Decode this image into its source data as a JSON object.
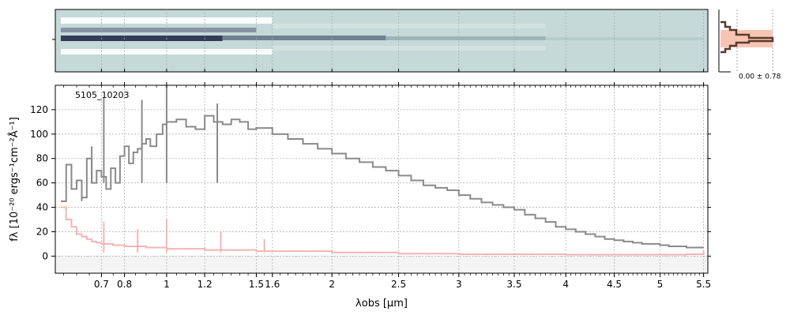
{
  "chart_data": {
    "type": "line",
    "object_label": "5105_10203",
    "xlabel": "λobs [μm]",
    "ylabel": "fλ [10⁻²⁰ ergs⁻¹cm⁻²Å⁻¹]",
    "xlim": [
      0.52,
      5.55
    ],
    "ylim": [
      -14,
      140
    ],
    "x_ticks": [
      0.7,
      0.8,
      1.0,
      1.2,
      1.5,
      1.6,
      2.0,
      2.5,
      3.0,
      3.5,
      4.0,
      4.5,
      5.0,
      5.5
    ],
    "y_ticks": [
      0,
      20,
      40,
      60,
      80,
      100,
      120
    ],
    "x_scale": "square-root",
    "grid": true,
    "profile_annotation": "0.00 ± 0.78",
    "series": [
      {
        "role": "flux",
        "color": "#8a8a8a",
        "x": [
          0.54,
          0.56,
          0.58,
          0.6,
          0.62,
          0.64,
          0.66,
          0.68,
          0.7,
          0.72,
          0.74,
          0.76,
          0.78,
          0.8,
          0.82,
          0.84,
          0.86,
          0.88,
          0.9,
          0.92,
          0.95,
          0.98,
          1.0,
          1.05,
          1.1,
          1.15,
          1.2,
          1.25,
          1.3,
          1.35,
          1.4,
          1.45,
          1.5,
          1.6,
          1.7,
          1.8,
          1.9,
          2.0,
          2.1,
          2.2,
          2.3,
          2.4,
          2.5,
          2.6,
          2.7,
          2.8,
          2.9,
          3.0,
          3.1,
          3.2,
          3.3,
          3.4,
          3.5,
          3.6,
          3.7,
          3.8,
          3.9,
          4.0,
          4.1,
          4.2,
          4.3,
          4.4,
          4.5,
          4.6,
          4.7,
          4.8,
          4.9,
          5.0,
          5.1,
          5.2,
          5.3,
          5.4,
          5.5
        ],
        "y": [
          45,
          75,
          55,
          62,
          48,
          80,
          60,
          70,
          65,
          55,
          72,
          60,
          82,
          90,
          76,
          85,
          88,
          92,
          96,
          90,
          100,
          108,
          110,
          112,
          106,
          104,
          115,
          110,
          108,
          112,
          110,
          104,
          105,
          100,
          96,
          92,
          88,
          84,
          80,
          77,
          73,
          70,
          66,
          62,
          58,
          56,
          54,
          50,
          47,
          44,
          42,
          40,
          38,
          34,
          31,
          28,
          24,
          22,
          20,
          18,
          16,
          14,
          13,
          12,
          11,
          10,
          10,
          9,
          8,
          8,
          7,
          7,
          7
        ]
      },
      {
        "role": "uncertainty",
        "color": "#f5b4b4",
        "x": [
          0.54,
          0.56,
          0.58,
          0.6,
          0.62,
          0.64,
          0.66,
          0.68,
          0.7,
          0.75,
          0.8,
          0.9,
          1.0,
          1.2,
          1.5,
          2.0,
          2.5,
          3.0,
          3.5,
          4.0,
          4.5,
          5.0,
          5.3,
          5.5
        ],
        "y": [
          40,
          30,
          24,
          18,
          16,
          14,
          12,
          11,
          10,
          9,
          8,
          7,
          6,
          5,
          4,
          3,
          2,
          1.5,
          1.5,
          1.2,
          1.2,
          1.2,
          1.5,
          4
        ]
      }
    ],
    "spikes": [
      {
        "x": 0.62,
        "y": 45,
        "color": "#8a8a8a"
      },
      {
        "x": 0.66,
        "y": 90,
        "color": "#8a8a8a"
      },
      {
        "x": 0.71,
        "y": 130,
        "color": "#8a8a8a"
      },
      {
        "x": 0.88,
        "y": 128,
        "color": "#8a8a8a"
      },
      {
        "x": 1.0,
        "y": 140,
        "color": "#8a8a8a"
      },
      {
        "x": 1.27,
        "y": 125,
        "color": "#8a8a8a"
      },
      {
        "x": 0.71,
        "y": 28,
        "color": "#f5b4b4"
      },
      {
        "x": 0.86,
        "y": 22,
        "color": "#f5b4b4"
      },
      {
        "x": 1.0,
        "y": 30,
        "color": "#f5b4b4"
      },
      {
        "x": 1.29,
        "y": 20,
        "color": "#f5b4b4"
      },
      {
        "x": 1.55,
        "y": 14,
        "color": "#f5b4b4"
      }
    ]
  }
}
